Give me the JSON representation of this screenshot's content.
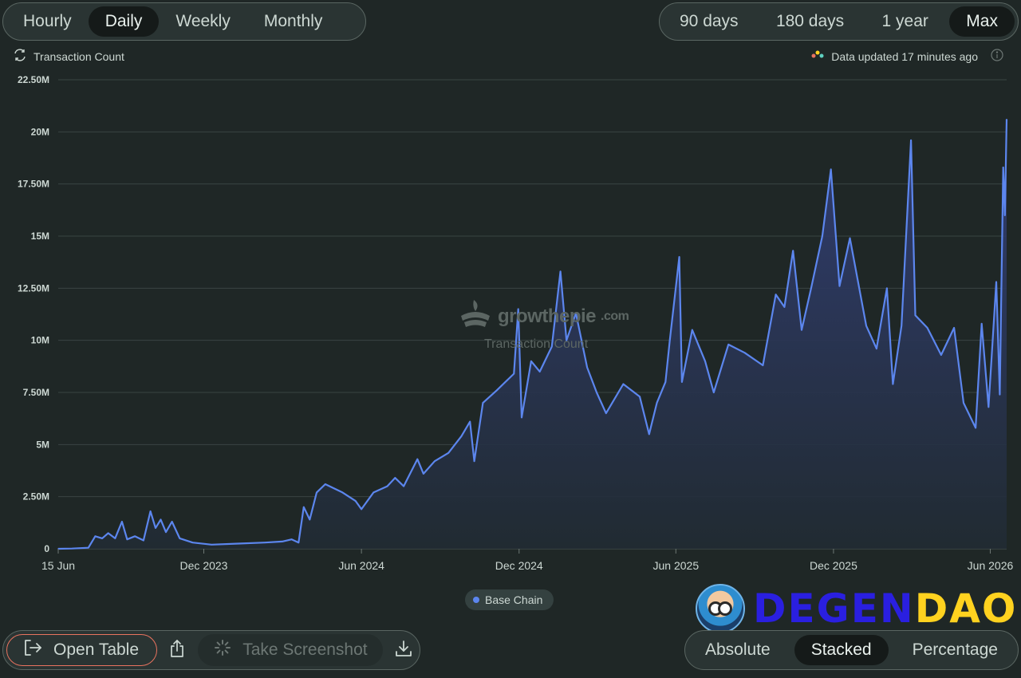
{
  "timeframe": {
    "tabs": [
      "Hourly",
      "Daily",
      "Weekly",
      "Monthly"
    ],
    "active": "Daily"
  },
  "range": {
    "tabs": [
      "90 days",
      "180 days",
      "1 year",
      "Max"
    ],
    "active": "Max"
  },
  "metric_label": "Transaction Count",
  "updated_label": "Data updated 17 minutes ago",
  "watermark": {
    "brand": "growthepie",
    "domain": ".com",
    "subtitle": "Transaction Count"
  },
  "legend": {
    "label": "Base Chain",
    "color": "#5c86ee"
  },
  "actions": {
    "open_table": "Open Table",
    "take_screenshot": "Take Screenshot"
  },
  "display_mode": {
    "tabs": [
      "Absolute",
      "Stacked",
      "Percentage"
    ],
    "active": "Stacked"
  },
  "brand_overlay": {
    "part1": "DEGEN",
    "part2": "DAO!"
  },
  "colors": {
    "line": "#5c86ee",
    "area_top": "#33407a",
    "area_bottom": "#212b33",
    "background": "#1f2726",
    "accent_border": "#e9735f"
  },
  "chart_data": {
    "type": "area",
    "title": "",
    "xlabel": "",
    "ylabel": "",
    "ylim": [
      0,
      22500000
    ],
    "y_ticks": [
      0,
      2500000,
      5000000,
      7500000,
      10000000,
      12500000,
      15000000,
      17500000,
      20000000,
      22500000
    ],
    "y_tick_labels": [
      "0",
      "2.50M",
      "5M",
      "7.50M",
      "10M",
      "12.50M",
      "15M",
      "17.50M",
      "20M",
      "22.50M"
    ],
    "x_range": [
      "2023-06-15",
      "2026-06-20"
    ],
    "x_ticks": [
      "2023-06-15",
      "2023-12-01",
      "2024-06-01",
      "2024-12-01",
      "2025-06-01",
      "2025-12-01",
      "2026-06-01"
    ],
    "x_tick_labels": [
      "15 Jun",
      "Dec 2023",
      "Jun 2024",
      "Dec 2024",
      "Jun 2025",
      "Dec 2025",
      "Jun 2026"
    ],
    "grid": true,
    "legend_position": "bottom-center",
    "series": [
      {
        "name": "Base Chain",
        "color": "#5c86ee",
        "points": [
          [
            "2023-06-15",
            0
          ],
          [
            "2023-07-01",
            10000
          ],
          [
            "2023-07-20",
            50000
          ],
          [
            "2023-07-28",
            600000
          ],
          [
            "2023-08-05",
            500000
          ],
          [
            "2023-08-12",
            750000
          ],
          [
            "2023-08-20",
            500000
          ],
          [
            "2023-08-28",
            1300000
          ],
          [
            "2023-09-03",
            450000
          ],
          [
            "2023-09-12",
            600000
          ],
          [
            "2023-09-22",
            400000
          ],
          [
            "2023-09-30",
            1800000
          ],
          [
            "2023-10-06",
            1000000
          ],
          [
            "2023-10-12",
            1400000
          ],
          [
            "2023-10-18",
            800000
          ],
          [
            "2023-10-25",
            1300000
          ],
          [
            "2023-11-03",
            500000
          ],
          [
            "2023-11-18",
            300000
          ],
          [
            "2023-12-10",
            200000
          ],
          [
            "2024-01-10",
            250000
          ],
          [
            "2024-02-10",
            300000
          ],
          [
            "2024-03-01",
            350000
          ],
          [
            "2024-03-12",
            450000
          ],
          [
            "2024-03-20",
            300000
          ],
          [
            "2024-03-26",
            2000000
          ],
          [
            "2024-04-02",
            1400000
          ],
          [
            "2024-04-10",
            2700000
          ],
          [
            "2024-04-20",
            3100000
          ],
          [
            "2024-05-10",
            2700000
          ],
          [
            "2024-05-25",
            2300000
          ],
          [
            "2024-06-01",
            1900000
          ],
          [
            "2024-06-15",
            2700000
          ],
          [
            "2024-07-01",
            3000000
          ],
          [
            "2024-07-10",
            3400000
          ],
          [
            "2024-07-20",
            3000000
          ],
          [
            "2024-08-05",
            4300000
          ],
          [
            "2024-08-12",
            3600000
          ],
          [
            "2024-08-25",
            4200000
          ],
          [
            "2024-09-10",
            4600000
          ],
          [
            "2024-09-25",
            5400000
          ],
          [
            "2024-10-05",
            6100000
          ],
          [
            "2024-10-10",
            4200000
          ],
          [
            "2024-10-20",
            7000000
          ],
          [
            "2024-11-05",
            7600000
          ],
          [
            "2024-11-25",
            8400000
          ],
          [
            "2024-11-30",
            11500000
          ],
          [
            "2024-12-04",
            6300000
          ],
          [
            "2024-12-15",
            9000000
          ],
          [
            "2024-12-25",
            8500000
          ],
          [
            "2025-01-08",
            9700000
          ],
          [
            "2025-01-18",
            13300000
          ],
          [
            "2025-01-25",
            10000000
          ],
          [
            "2025-02-05",
            11300000
          ],
          [
            "2025-02-18",
            8700000
          ],
          [
            "2025-03-01",
            7500000
          ],
          [
            "2025-03-12",
            6500000
          ],
          [
            "2025-04-01",
            7900000
          ],
          [
            "2025-04-20",
            7300000
          ],
          [
            "2025-05-01",
            5500000
          ],
          [
            "2025-05-10",
            7000000
          ],
          [
            "2025-05-20",
            8000000
          ],
          [
            "2025-05-25",
            10000000
          ],
          [
            "2025-06-05",
            14000000
          ],
          [
            "2025-06-08",
            8000000
          ],
          [
            "2025-06-20",
            10500000
          ],
          [
            "2025-07-05",
            9000000
          ],
          [
            "2025-07-15",
            7500000
          ],
          [
            "2025-08-01",
            9800000
          ],
          [
            "2025-08-20",
            9400000
          ],
          [
            "2025-09-10",
            8800000
          ],
          [
            "2025-09-25",
            12200000
          ],
          [
            "2025-10-05",
            11600000
          ],
          [
            "2025-10-15",
            14300000
          ],
          [
            "2025-10-25",
            10500000
          ],
          [
            "2025-11-05",
            12500000
          ],
          [
            "2025-11-18",
            15000000
          ],
          [
            "2025-11-28",
            18200000
          ],
          [
            "2025-12-08",
            12600000
          ],
          [
            "2025-12-20",
            14900000
          ],
          [
            "2026-01-08",
            10700000
          ],
          [
            "2026-01-20",
            9600000
          ],
          [
            "2026-02-01",
            12500000
          ],
          [
            "2026-02-08",
            7900000
          ],
          [
            "2026-02-18",
            10700000
          ],
          [
            "2026-03-01",
            19600000
          ],
          [
            "2026-03-06",
            11200000
          ],
          [
            "2026-03-20",
            10600000
          ],
          [
            "2026-04-05",
            9300000
          ],
          [
            "2026-04-20",
            10600000
          ],
          [
            "2026-05-01",
            7000000
          ],
          [
            "2026-05-15",
            5800000
          ],
          [
            "2026-05-22",
            10800000
          ],
          [
            "2026-05-30",
            6800000
          ],
          [
            "2026-06-08",
            12800000
          ],
          [
            "2026-06-12",
            7400000
          ],
          [
            "2026-06-16",
            18300000
          ],
          [
            "2026-06-18",
            16000000
          ],
          [
            "2026-06-20",
            20600000
          ]
        ]
      }
    ]
  }
}
